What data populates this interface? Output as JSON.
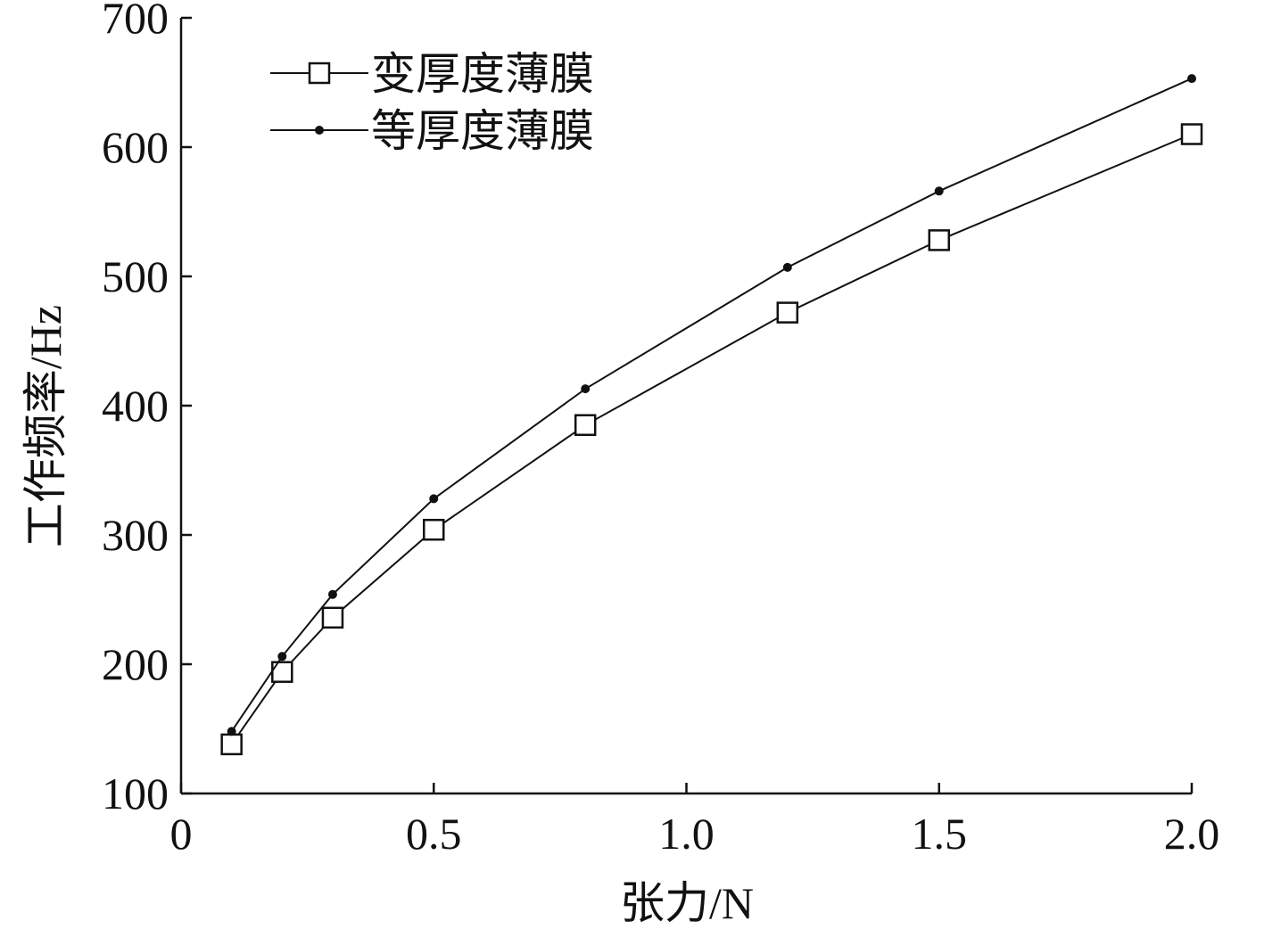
{
  "chart_data": {
    "type": "line",
    "xlabel": "张力/N",
    "ylabel": "工作频率/Hz",
    "xlim": [
      0,
      2.0
    ],
    "ylim": [
      100,
      700
    ],
    "xticks": [
      "0",
      "0.5",
      "1.0",
      "1.5",
      "2.0"
    ],
    "yticks": [
      "100",
      "200",
      "300",
      "400",
      "500",
      "600",
      "700"
    ],
    "x": [
      0.1,
      0.2,
      0.3,
      0.5,
      0.8,
      1.2,
      1.5,
      2.0
    ],
    "series": [
      {
        "name": "变厚度薄膜",
        "marker": "square",
        "values": [
          138,
          194,
          236,
          304,
          385,
          472,
          528,
          610
        ]
      },
      {
        "name": "等厚度薄膜",
        "marker": "dot",
        "values": [
          148,
          206,
          254,
          328,
          413,
          507,
          566,
          653
        ]
      }
    ],
    "legend_position": "top-left",
    "grid": false,
    "line_color": "#111111"
  }
}
